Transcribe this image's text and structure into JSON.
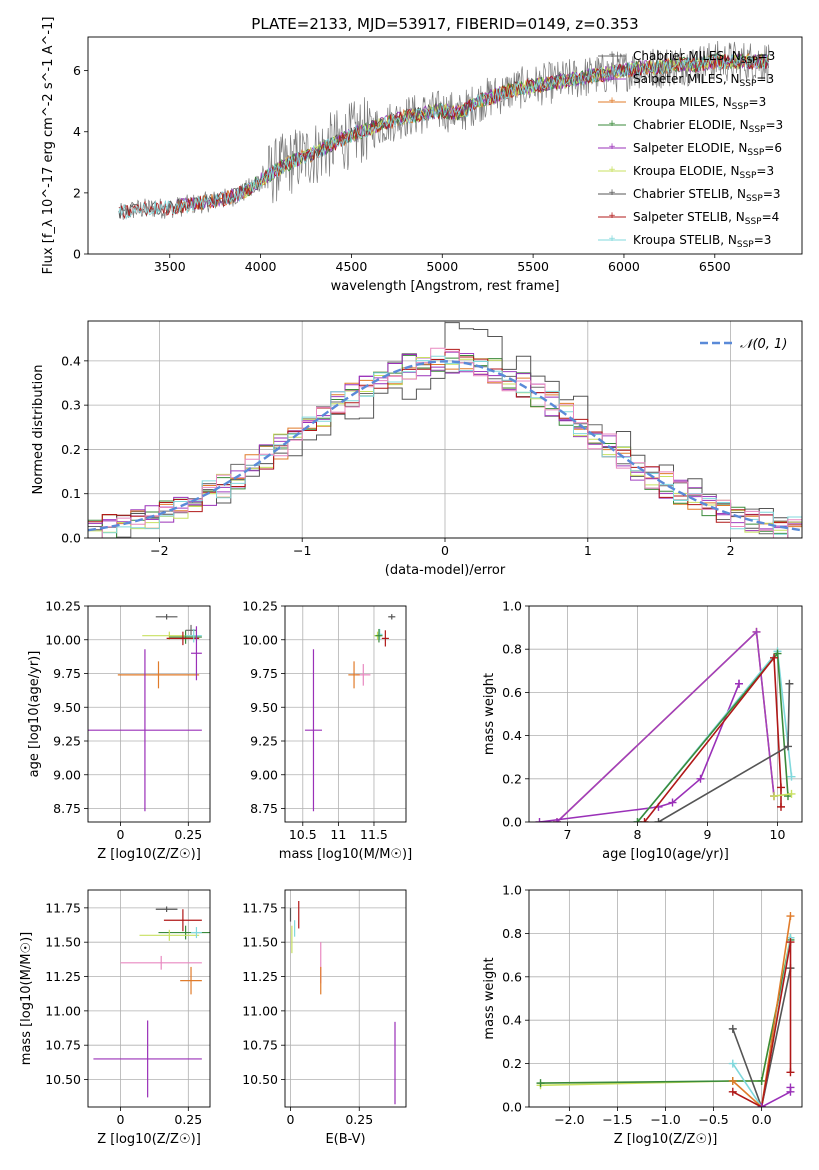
{
  "figure_title": "PLATE=2133, MJD=53917, FIBERID=0149, z=0.353",
  "colors": {
    "Chabrier MILES": "#6a6a6a",
    "Salpeter MILES": "#a040c0",
    "Kroupa MILES": "#e07b2a",
    "Chabrier ELODIE": "#3a8a3a",
    "Salpeter ELODIE": "#9a30b8",
    "Kroupa ELODIE": "#c8e060",
    "Chabrier STELIB": "#555555",
    "Salpeter STELIB": "#b01818",
    "Kroupa STELIB": "#80d8dc",
    "pink": "#e888c0",
    "gauss": "#5a8ad8"
  },
  "chart_data": [
    {
      "id": "spectrum",
      "type": "line",
      "xlabel": "wavelength [Angstrom, rest frame]",
      "ylabel": "Flux [f_λ 10^-17 erg cm^-2 s^-1 A^-1]",
      "xlim": [
        3050,
        6980
      ],
      "ylim": [
        0,
        7.1
      ],
      "xticks": [
        3500,
        4000,
        4500,
        5000,
        5500,
        6000,
        6500
      ],
      "yticks": [
        0,
        2,
        4,
        6
      ],
      "grid": false,
      "legend_placement": "right",
      "legend": [
        {
          "model": "Chabrier MILES",
          "nssp": "3"
        },
        {
          "model": "Salpeter MILES",
          "nssp": "3"
        },
        {
          "model": "Kroupa MILES",
          "nssp": "3"
        },
        {
          "model": "Chabrier ELODIE",
          "nssp": "3"
        },
        {
          "model": "Salpeter ELODIE",
          "nssp": "6"
        },
        {
          "model": "Kroupa ELODIE",
          "nssp": "3"
        },
        {
          "model": "Chabrier STELIB",
          "nssp": "3"
        },
        {
          "model": "Salpeter STELIB",
          "nssp": "4"
        },
        {
          "model": "Kroupa STELIB",
          "nssp": "3"
        }
      ],
      "continuum": {
        "x": [
          3220,
          3300,
          3400,
          3500,
          3600,
          3700,
          3800,
          3900,
          4000,
          4100,
          4200,
          4300,
          4400,
          4500,
          4600,
          4700,
          4800,
          4900,
          5000,
          5100,
          5200,
          5300,
          5400,
          5500,
          5600,
          5700,
          5800,
          5900,
          6000,
          6100,
          6200,
          6300,
          6400,
          6500,
          6600,
          6700,
          6800
        ],
        "y": [
          1.3,
          1.45,
          1.5,
          1.5,
          1.6,
          1.7,
          1.8,
          2.0,
          2.4,
          2.8,
          3.1,
          3.3,
          3.6,
          3.9,
          4.1,
          4.3,
          4.5,
          4.6,
          4.7,
          4.6,
          5.0,
          5.2,
          5.4,
          5.5,
          5.6,
          5.7,
          5.8,
          5.9,
          6.0,
          6.1,
          6.1,
          6.2,
          6.2,
          6.3,
          6.3,
          6.3,
          6.3
        ]
      },
      "model_start": {
        "Chabrier MILES": 3540,
        "Salpeter MILES": 3540,
        "Kroupa MILES": 3540,
        "Chabrier ELODIE": 3900,
        "Salpeter ELODIE": 3900,
        "Kroupa ELODIE": 3900,
        "Chabrier STELIB": 3220,
        "Salpeter STELIB": 3220,
        "Kroupa STELIB": 3220
      }
    },
    {
      "id": "residuals",
      "type": "line",
      "xlabel": "(data-model)/error",
      "ylabel": "Normed distribution",
      "xlim": [
        -2.5,
        2.5
      ],
      "ylim": [
        0,
        0.49
      ],
      "xticks": [
        -2,
        -1,
        0,
        1,
        2
      ],
      "yticks": [
        0.0,
        0.1,
        0.2,
        0.3,
        0.4
      ],
      "grid": true,
      "legend": [
        {
          "name": "𝒩(0, 1)"
        }
      ],
      "legend_placement": "top-right",
      "gaussian": {
        "mean": 0,
        "sigma": 1
      }
    },
    {
      "id": "age_vs_Z",
      "type": "scatter",
      "xlabel": "Z [log10(Z/Z☉)]",
      "ylabel": "age  [log10(age/yr)]",
      "xlim": [
        -0.12,
        0.33
      ],
      "ylim": [
        8.65,
        10.25
      ],
      "xticks": [
        0.0,
        0.25
      ],
      "yticks": [
        8.75,
        9.0,
        9.25,
        9.5,
        9.75,
        10.0,
        10.25
      ],
      "grid": true,
      "points": [
        {
          "series": "Chabrier STELIB",
          "x": 0.17,
          "y": 10.17,
          "xerr": 0.04,
          "yerr": 0.02
        },
        {
          "series": "Chabrier MILES",
          "x": 0.26,
          "y": 10.07,
          "xerr": 0.02,
          "yerr": 0.04
        },
        {
          "series": "Kroupa ELODIE",
          "x": 0.18,
          "y": 10.03,
          "xerr": 0.1,
          "yerr": 0.03
        },
        {
          "series": "Chabrier ELODIE",
          "x": 0.24,
          "y": 10.02,
          "xerr": 0.06,
          "yerr": 0.05
        },
        {
          "series": "Salpeter STELIB",
          "x": 0.23,
          "y": 10.01,
          "xerr": 0.06,
          "yerr": 0.05
        },
        {
          "series": "Kroupa STELIB",
          "x": 0.27,
          "y": 10.03,
          "xerr": 0.03,
          "yerr": 0.05
        },
        {
          "series": "Kroupa MILES",
          "x": 0.14,
          "y": 9.74,
          "xerr": 0.15,
          "yerr": 0.1
        },
        {
          "series": "Salpeter ELODIE",
          "x": 0.28,
          "y": 9.9,
          "xerr": 0.02,
          "yerr": 0.2
        },
        {
          "series": "Salpeter ELODIE",
          "x": 0.09,
          "y": 9.33,
          "xerr": 0.21,
          "yerr": 0.6
        }
      ]
    },
    {
      "id": "age_vs_mass",
      "type": "scatter",
      "xlabel": "mass [log10(M/M☉)]",
      "ylabel": "",
      "xlim": [
        10.25,
        11.95
      ],
      "ylim": [
        8.65,
        10.25
      ],
      "xticks": [
        10.5,
        11.0,
        11.5
      ],
      "yticks": [
        8.75,
        9.0,
        9.25,
        9.5,
        9.75,
        10.0,
        10.25
      ],
      "grid": true,
      "points": [
        {
          "series": "Chabrier STELIB",
          "x": 11.75,
          "y": 10.17,
          "xerr": 0.05,
          "yerr": 0.02
        },
        {
          "series": "Kroupa STELIB",
          "x": 11.58,
          "y": 10.04,
          "xerr": 0.04,
          "yerr": 0.04
        },
        {
          "series": "Kroupa ELODIE",
          "x": 11.55,
          "y": 10.03,
          "xerr": 0.05,
          "yerr": 0.03
        },
        {
          "series": "Chabrier ELODIE",
          "x": 11.57,
          "y": 10.03,
          "xerr": 0.05,
          "yerr": 0.05
        },
        {
          "series": "Salpeter STELIB",
          "x": 11.66,
          "y": 10.01,
          "xerr": 0.05,
          "yerr": 0.06
        },
        {
          "series": "pink",
          "x": 11.35,
          "y": 9.74,
          "xerr": 0.1,
          "yerr": 0.08
        },
        {
          "series": "Kroupa MILES",
          "x": 11.22,
          "y": 9.74,
          "xerr": 0.08,
          "yerr": 0.1
        },
        {
          "series": "Salpeter ELODIE",
          "x": 10.65,
          "y": 9.33,
          "xerr": 0.12,
          "yerr": 0.6
        }
      ]
    },
    {
      "id": "weight_vs_age",
      "type": "line",
      "xlabel": "age  [log10(age/yr)]",
      "ylabel": "mass weight",
      "xlim": [
        6.45,
        10.35
      ],
      "ylim": [
        0.0,
        1.0
      ],
      "xticks": [
        7,
        8,
        9,
        10
      ],
      "yticks": [
        0.0,
        0.2,
        0.4,
        0.6,
        0.8,
        1.0
      ],
      "grid": true,
      "series": [
        {
          "name": "Kroupa MILES",
          "x": [
            6.85,
            9.7,
            9.95
          ],
          "y": [
            0.0,
            0.88,
            0.12
          ]
        },
        {
          "name": "Salpeter MILES",
          "x": [
            6.85,
            9.7,
            9.95
          ],
          "y": [
            0.0,
            0.88,
            0.12
          ]
        },
        {
          "name": "Salpeter ELODIE",
          "x": [
            6.6,
            8.3,
            8.5,
            8.9,
            9.45,
            9.45
          ],
          "y": [
            0.0,
            0.07,
            0.09,
            0.2,
            0.64,
            0.64
          ]
        },
        {
          "name": "Kroupa STELIB",
          "x": [
            8.0,
            10.0,
            10.2
          ],
          "y": [
            0.0,
            0.79,
            0.21
          ]
        },
        {
          "name": "Chabrier ELODIE",
          "x": [
            8.0,
            10.0,
            10.15
          ],
          "y": [
            0.0,
            0.78,
            0.12
          ]
        },
        {
          "name": "Salpeter STELIB",
          "x": [
            8.1,
            9.95,
            10.05,
            10.05
          ],
          "y": [
            0.0,
            0.76,
            0.16,
            0.07
          ]
        },
        {
          "name": "Chabrier STELIB",
          "x": [
            8.3,
            10.15,
            10.17
          ],
          "y": [
            0.0,
            0.35,
            0.64
          ]
        },
        {
          "name": "Kroupa ELODIE",
          "x": [
            9.95,
            10.2
          ],
          "y": [
            0.12,
            0.13
          ]
        }
      ]
    },
    {
      "id": "mass_vs_Z",
      "type": "scatter",
      "xlabel": "Z [log10(Z/Z☉)]",
      "ylabel": "mass [log10(M/M☉)]",
      "xlim": [
        -0.12,
        0.33
      ],
      "ylim": [
        10.3,
        11.88
      ],
      "xticks": [
        0.0,
        0.25
      ],
      "yticks": [
        10.5,
        10.75,
        11.0,
        11.25,
        11.5,
        11.75
      ],
      "grid": true,
      "points": [
        {
          "series": "Chabrier STELIB",
          "x": 0.17,
          "y": 11.74,
          "xerr": 0.04,
          "yerr": 0.02
        },
        {
          "series": "Salpeter STELIB",
          "x": 0.23,
          "y": 11.66,
          "xerr": 0.07,
          "yerr": 0.08
        },
        {
          "series": "Chabrier ELODIE",
          "x": 0.24,
          "y": 11.57,
          "xerr": 0.1,
          "yerr": 0.05
        },
        {
          "series": "Kroupa ELODIE",
          "x": 0.18,
          "y": 11.55,
          "xerr": 0.11,
          "yerr": 0.04
        },
        {
          "series": "Kroupa STELIB",
          "x": 0.28,
          "y": 11.57,
          "xerr": 0.02,
          "yerr": 0.04
        },
        {
          "series": "pink",
          "x": 0.15,
          "y": 11.35,
          "xerr": 0.15,
          "yerr": 0.05
        },
        {
          "series": "Kroupa MILES",
          "x": 0.26,
          "y": 11.22,
          "xerr": 0.04,
          "yerr": 0.1
        },
        {
          "series": "Salpeter ELODIE",
          "x": 0.1,
          "y": 10.65,
          "xerr": 0.2,
          "yerr": 0.28
        }
      ]
    },
    {
      "id": "mass_vs_EBV",
      "type": "scatter",
      "xlabel": "E(B-V)",
      "ylabel": "",
      "xlim": [
        -0.02,
        0.42
      ],
      "ylim": [
        10.3,
        11.88
      ],
      "xticks": [
        0.0,
        0.25
      ],
      "yticks": [
        10.5,
        10.75,
        11.0,
        11.25,
        11.5,
        11.75
      ],
      "grid": true,
      "points": [
        {
          "series": "Chabrier STELIB",
          "x": 0.0,
          "y": 11.7,
          "xerr": 0,
          "yerr": 0.05
        },
        {
          "series": "Kroupa ELODIE",
          "x": 0.005,
          "y": 11.52,
          "xerr": 0,
          "yerr": 0.1
        },
        {
          "series": "Salpeter STELIB",
          "x": 0.03,
          "y": 11.7,
          "xerr": 0,
          "yerr": 0.1
        },
        {
          "series": "Kroupa STELIB",
          "x": 0.015,
          "y": 11.6,
          "xerr": 0,
          "yerr": 0.06
        },
        {
          "series": "pink",
          "x": 0.11,
          "y": 11.35,
          "xerr": 0,
          "yerr": 0.15
        },
        {
          "series": "Kroupa MILES",
          "x": 0.11,
          "y": 11.22,
          "xerr": 0,
          "yerr": 0.1
        },
        {
          "series": "Salpeter ELODIE",
          "x": 0.38,
          "y": 10.62,
          "xerr": 0,
          "yerr": 0.3
        }
      ]
    },
    {
      "id": "weight_vs_Z",
      "type": "line",
      "xlabel": "Z [log10(Z/Z☉)]",
      "ylabel": "mass weight",
      "xlim": [
        -2.42,
        0.42
      ],
      "ylim": [
        0.0,
        1.0
      ],
      "xticks": [
        -2.0,
        -1.5,
        -1.0,
        -0.5,
        0.0
      ],
      "yticks": [
        0.0,
        0.2,
        0.4,
        0.6,
        0.8,
        1.0
      ],
      "grid": true,
      "series": [
        {
          "name": "Kroupa ELODIE",
          "x": [
            -2.3,
            -0.3,
            0.0,
            0.3
          ],
          "y": [
            0.1,
            0.12,
            0.12,
            0.78
          ]
        },
        {
          "name": "Chabrier ELODIE",
          "x": [
            -2.3,
            -0.3,
            0.0,
            0.3
          ],
          "y": [
            0.11,
            0.12,
            0.12,
            0.77
          ]
        },
        {
          "name": "Chabrier STELIB",
          "x": [
            -0.3,
            0.0,
            0.3
          ],
          "y": [
            0.36,
            0.0,
            0.64
          ]
        },
        {
          "name": "Kroupa STELIB",
          "x": [
            -0.3,
            0.0,
            0.3
          ],
          "y": [
            0.2,
            0.0,
            0.78
          ]
        },
        {
          "name": "Kroupa MILES",
          "x": [
            -0.3,
            0.0,
            0.3
          ],
          "y": [
            0.12,
            0.0,
            0.88
          ]
        },
        {
          "name": "Salpeter STELIB",
          "x": [
            -0.3,
            0.0,
            0.3,
            0.3
          ],
          "y": [
            0.07,
            0.0,
            0.76,
            0.16
          ]
        },
        {
          "name": "Salpeter ELODIE",
          "x": [
            0.0,
            0.3,
            0.3
          ],
          "y": [
            0.0,
            0.07,
            0.09
          ]
        }
      ]
    }
  ]
}
